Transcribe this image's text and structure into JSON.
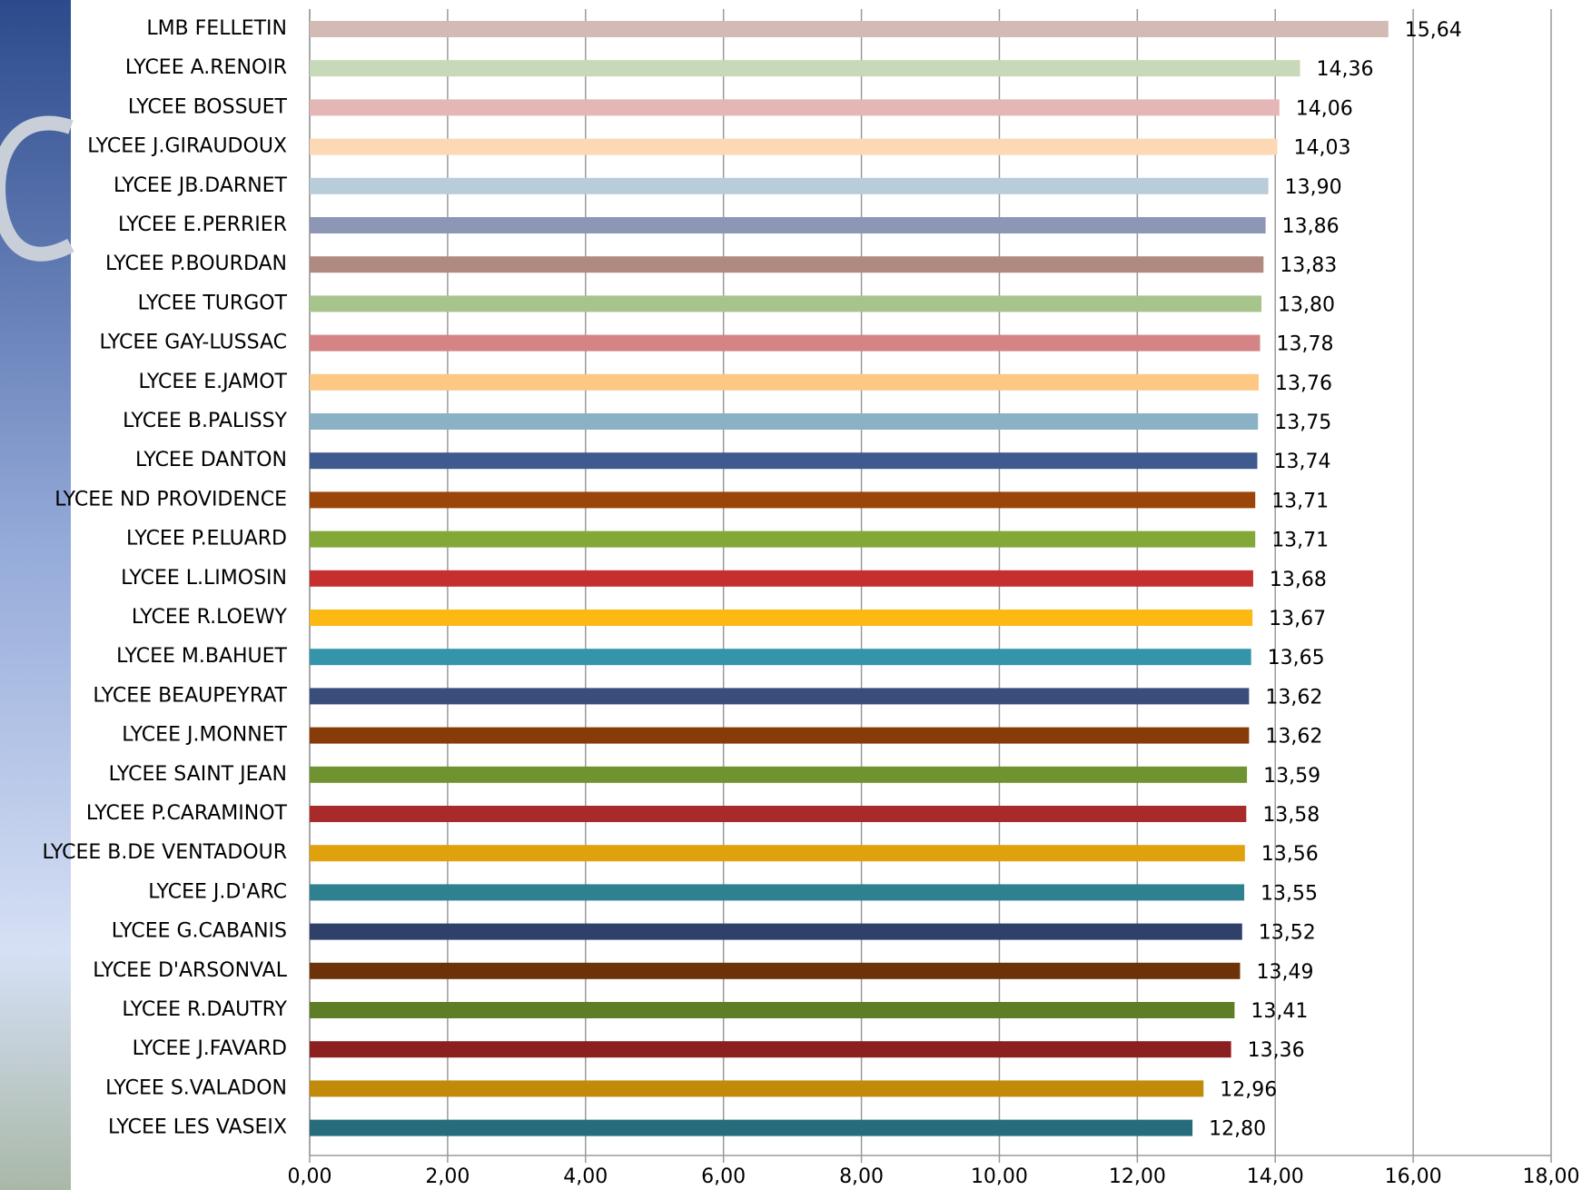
{
  "chart_data": {
    "type": "hbar",
    "categories": [
      "LMB FELLETIN",
      "LYCEE A.RENOIR",
      "LYCEE BOSSUET",
      "LYCEE J.GIRAUDOUX",
      "LYCEE JB.DARNET",
      "LYCEE E.PERRIER",
      "LYCEE P.BOURDAN",
      "LYCEE TURGOT",
      "LYCEE GAY-LUSSAC",
      "LYCEE E.JAMOT",
      "LYCEE B.PALISSY",
      "LYCEE DANTON",
      "LYCEE ND PROVIDENCE",
      "LYCEE P.ELUARD",
      "LYCEE L.LIMOSIN",
      "LYCEE R.LOEWY",
      "LYCEE M.BAHUET",
      "LYCEE BEAUPEYRAT",
      "LYCEE J.MONNET",
      "LYCEE SAINT JEAN",
      "LYCEE P.CARAMINOT",
      "LYCEE B.DE VENTADOUR",
      "LYCEE J.D'ARC",
      "LYCEE G.CABANIS",
      "LYCEE D'ARSONVAL",
      "LYCEE R.DAUTRY",
      "LYCEE J.FAVARD",
      "LYCEE S.VALADON",
      "LYCEE LES VASEIX"
    ],
    "values": [
      15.64,
      14.36,
      14.06,
      14.03,
      13.9,
      13.86,
      13.83,
      13.8,
      13.78,
      13.76,
      13.75,
      13.74,
      13.71,
      13.71,
      13.68,
      13.67,
      13.65,
      13.62,
      13.62,
      13.59,
      13.58,
      13.56,
      13.55,
      13.52,
      13.49,
      13.41,
      13.36,
      12.96,
      12.8
    ],
    "value_labels": [
      "15,64",
      "14,36",
      "14,06",
      "14,03",
      "13,90",
      "13,86",
      "13,83",
      "13,80",
      "13,78",
      "13,76",
      "13,75",
      "13,74",
      "13,71",
      "13,71",
      "13,68",
      "13,67",
      "13,65",
      "13,62",
      "13,62",
      "13,59",
      "13,58",
      "13,56",
      "13,55",
      "13,52",
      "13,49",
      "13,41",
      "13,36",
      "12,96",
      "12,80"
    ],
    "colors": [
      "#d3bab4",
      "#c7d9b8",
      "#e4b6b6",
      "#fcd8b4",
      "#b9ccd9",
      "#8e96b6",
      "#b08a80",
      "#a8c48d",
      "#d48484",
      "#fdc884",
      "#8ab1c4",
      "#3f5a8e",
      "#9b4509",
      "#83a838",
      "#c62f2f",
      "#fcb813",
      "#3494aa",
      "#3a4e7c",
      "#873b08",
      "#6f9330",
      "#a82a2a",
      "#e0a20c",
      "#2f8192",
      "#2f416b",
      "#6e3208",
      "#5e7d26",
      "#8c2020",
      "#c18b09",
      "#276c7c"
    ],
    "xlim": [
      0,
      18
    ],
    "xticks": [
      {
        "value": 0,
        "label": "0,00"
      },
      {
        "value": 2,
        "label": "2,00"
      },
      {
        "value": 4,
        "label": "4,00"
      },
      {
        "value": 6,
        "label": "6,00"
      },
      {
        "value": 8,
        "label": "8,00"
      },
      {
        "value": 10,
        "label": "10,00"
      },
      {
        "value": 12,
        "label": "12,00"
      },
      {
        "value": 14,
        "label": "14,00"
      },
      {
        "value": 16,
        "label": "16,00"
      },
      {
        "value": 18,
        "label": "18,00"
      }
    ],
    "grid": true
  }
}
